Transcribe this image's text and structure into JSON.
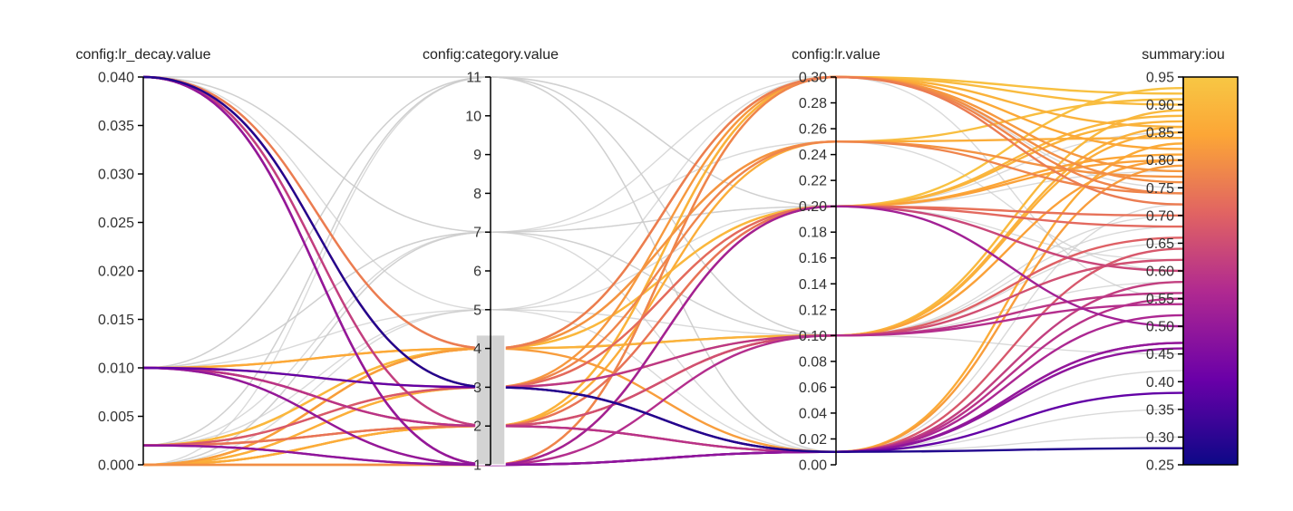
{
  "chart_data": {
    "type": "parallel_coordinates",
    "dimensions": [
      {
        "key": "lr_decay",
        "label": "config:lr_decay.value",
        "range": [
          0,
          0.04
        ],
        "ticks": [
          "0.000",
          "0.005",
          "0.010",
          "0.015",
          "0.020",
          "0.025",
          "0.030",
          "0.035",
          "0.040"
        ],
        "tick_values": [
          0,
          0.005,
          0.01,
          0.015,
          0.02,
          0.025,
          0.03,
          0.035,
          0.04
        ]
      },
      {
        "key": "category",
        "label": "config:category.value",
        "range": [
          1,
          11
        ],
        "ticks": [
          "1",
          "2",
          "3",
          "4",
          "5",
          "6",
          "7",
          "8",
          "9",
          "10",
          "11"
        ],
        "tick_values": [
          1,
          2,
          3,
          4,
          5,
          6,
          7,
          8,
          9,
          10,
          11
        ],
        "brush": [
          1,
          4.35
        ]
      },
      {
        "key": "lr",
        "label": "config:lr.value",
        "range": [
          0,
          0.3
        ],
        "ticks": [
          "0.00",
          "0.02",
          "0.04",
          "0.06",
          "0.08",
          "0.10",
          "0.12",
          "0.14",
          "0.16",
          "0.18",
          "0.20",
          "0.22",
          "0.24",
          "0.26",
          "0.28",
          "0.30"
        ],
        "tick_values": [
          0,
          0.02,
          0.04,
          0.06,
          0.08,
          0.1,
          0.12,
          0.14,
          0.16,
          0.18,
          0.2,
          0.22,
          0.24,
          0.26,
          0.28,
          0.3
        ]
      },
      {
        "key": "iou",
        "label": "summary:iou",
        "range": [
          0.25,
          0.95
        ],
        "ticks": [
          "0.25",
          "0.30",
          "0.35",
          "0.40",
          "0.45",
          "0.50",
          "0.55",
          "0.60",
          "0.65",
          "0.70",
          "0.75",
          "0.80",
          "0.85",
          "0.90",
          "0.95"
        ],
        "tick_values": [
          0.25,
          0.3,
          0.35,
          0.4,
          0.45,
          0.5,
          0.55,
          0.6,
          0.65,
          0.7,
          0.75,
          0.8,
          0.85,
          0.9,
          0.95
        ],
        "colorscale": "plasma"
      }
    ],
    "colorscale_stops": [
      "#0d0887",
      "#6a00a8",
      "#b12a90",
      "#e16462",
      "#fca636",
      "#f7c744"
    ],
    "dimmed_color": "#cccccc",
    "active_series": [
      [
        0.04,
        3,
        0.01,
        0.28
      ],
      [
        0.04,
        1,
        0.01,
        0.47
      ],
      [
        0.04,
        1,
        0.01,
        0.52
      ],
      [
        0.04,
        2,
        0.01,
        0.58
      ],
      [
        0.04,
        2,
        0.1,
        0.62
      ],
      [
        0.04,
        3,
        0.2,
        0.68
      ],
      [
        0.04,
        4,
        0.25,
        0.77
      ],
      [
        0.04,
        4,
        0.3,
        0.72
      ],
      [
        0.04,
        1,
        0.2,
        0.5
      ],
      [
        0.04,
        3,
        0.1,
        0.56
      ],
      [
        0.01,
        3,
        0.01,
        0.38
      ],
      [
        0.01,
        1,
        0.01,
        0.47
      ],
      [
        0.01,
        1,
        0.2,
        0.6
      ],
      [
        0.01,
        2,
        0.1,
        0.66
      ],
      [
        0.01,
        4,
        0.3,
        0.82
      ],
      [
        0.01,
        3,
        0.25,
        0.74
      ],
      [
        0.01,
        2,
        0.01,
        0.55
      ],
      [
        0.01,
        4,
        0.1,
        0.86
      ],
      [
        0.002,
        1,
        0.01,
        0.46
      ],
      [
        0.002,
        2,
        0.2,
        0.7
      ],
      [
        0.002,
        3,
        0.3,
        0.78
      ],
      [
        0.002,
        4,
        0.2,
        0.88
      ],
      [
        0.002,
        2,
        0.1,
        0.8
      ],
      [
        0.002,
        4,
        0.25,
        0.91
      ],
      [
        0.002,
        1,
        0.1,
        0.54
      ],
      [
        0.002,
        3,
        0.01,
        0.64
      ],
      [
        0.0,
        2,
        0.3,
        0.9
      ],
      [
        0.0,
        4,
        0.2,
        0.93
      ],
      [
        0.0,
        2,
        0.25,
        0.84
      ],
      [
        0.0,
        3,
        0.2,
        0.87
      ],
      [
        0.0,
        4,
        0.1,
        0.89
      ],
      [
        0.0,
        1,
        0.3,
        0.76
      ],
      [
        0.0,
        2,
        0.01,
        0.83
      ],
      [
        0.0,
        4,
        0.01,
        0.79
      ],
      [
        0.0,
        3,
        0.1,
        0.85
      ],
      [
        0.0,
        4,
        0.3,
        0.92
      ],
      [
        0.002,
        2,
        0.3,
        0.86
      ],
      [
        0.01,
        2,
        0.2,
        0.8
      ],
      [
        0.04,
        1,
        0.3,
        0.74
      ],
      [
        0.0,
        1,
        0.2,
        0.81
      ]
    ],
    "dimmed_series": [
      [
        0.04,
        11,
        0.2,
        0.78
      ],
      [
        0.04,
        7,
        0.1,
        0.65
      ],
      [
        0.04,
        5,
        0.3,
        0.55
      ],
      [
        0.01,
        11,
        0.01,
        0.72
      ],
      [
        0.01,
        7,
        0.25,
        0.6
      ],
      [
        0.01,
        5,
        0.1,
        0.45
      ],
      [
        0.002,
        11,
        0.3,
        0.82
      ],
      [
        0.002,
        7,
        0.2,
        0.5
      ],
      [
        0.002,
        5,
        0.01,
        0.35
      ],
      [
        0.0,
        11,
        0.1,
        0.68
      ],
      [
        0.0,
        7,
        0.3,
        0.75
      ],
      [
        0.0,
        5,
        0.2,
        0.62
      ],
      [
        0.04,
        11,
        0.01,
        0.42
      ],
      [
        0.01,
        7,
        0.01,
        0.3
      ],
      [
        0.002,
        11,
        0.1,
        0.58
      ],
      [
        0.0,
        7,
        0.1,
        0.7
      ],
      [
        0.04,
        7,
        0.2,
        0.88
      ],
      [
        0.01,
        11,
        0.2,
        0.85
      ]
    ]
  }
}
